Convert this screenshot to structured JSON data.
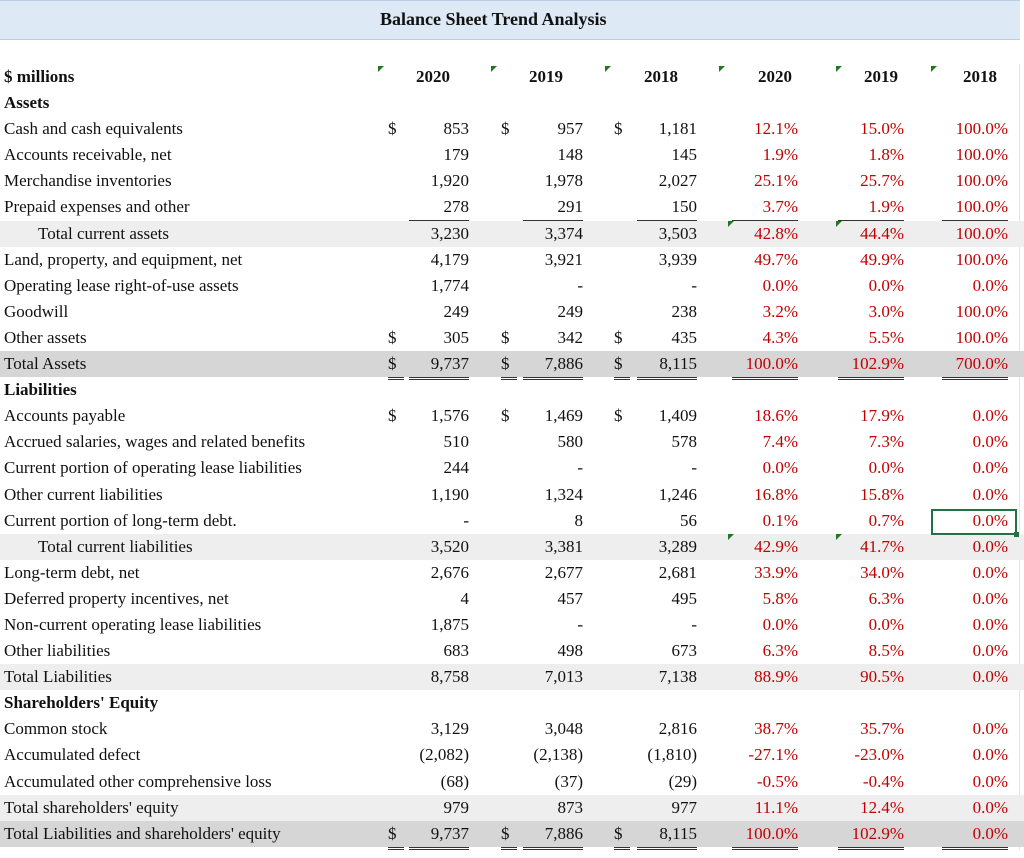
{
  "title": "Balance Sheet Trend Analysis",
  "header": {
    "label": "$ millions",
    "amount_years": [
      "2020",
      "2019",
      "2018"
    ],
    "pct_years": [
      "2020",
      "2019",
      "2018"
    ]
  },
  "rows": [
    {
      "type": "section",
      "label": "Assets"
    },
    {
      "label": "Cash and cash equivalents",
      "dollar": [
        "$",
        "$",
        "$"
      ],
      "values": [
        "853",
        "957",
        "1,181"
      ],
      "pct": [
        "12.1%",
        "15.0%",
        "100.0%"
      ]
    },
    {
      "label": "Accounts receivable, net",
      "values": [
        "179",
        "148",
        "145"
      ],
      "pct": [
        "1.9%",
        "1.8%",
        "100.0%"
      ]
    },
    {
      "label": "Merchandise inventories",
      "values": [
        "1,920",
        "1,978",
        "2,027"
      ],
      "pct": [
        "25.1%",
        "25.7%",
        "100.0%"
      ]
    },
    {
      "label": "Prepaid expenses and other",
      "values": [
        "278",
        "291",
        "150"
      ],
      "pct": [
        "3.7%",
        "1.9%",
        "100.0%"
      ],
      "underline": true
    },
    {
      "label": "Total current assets",
      "indent": true,
      "band": true,
      "values": [
        "3,230",
        "3,374",
        "3,503"
      ],
      "pct": [
        "42.8%",
        "44.4%",
        "100.0%"
      ]
    },
    {
      "label": "Land, property, and equipment, net",
      "values": [
        "4,179",
        "3,921",
        "3,939"
      ],
      "pct": [
        "49.7%",
        "49.9%",
        "100.0%"
      ]
    },
    {
      "label": "Operating lease right-of-use assets",
      "values": [
        "1,774",
        "-",
        "-"
      ],
      "pct": [
        "0.0%",
        "0.0%",
        "0.0%"
      ]
    },
    {
      "label": "Goodwill",
      "values": [
        "249",
        "249",
        "238"
      ],
      "pct": [
        "3.2%",
        "3.0%",
        "100.0%"
      ]
    },
    {
      "label": "Other assets",
      "dollar": [
        "$",
        "$",
        "$"
      ],
      "values": [
        "305",
        "342",
        "435"
      ],
      "pct": [
        "4.3%",
        "5.5%",
        "100.0%"
      ],
      "underline": true
    },
    {
      "label": "Total Assets",
      "band_dark": true,
      "dollar": [
        "$",
        "$",
        "$"
      ],
      "values": [
        "9,737",
        "7,886",
        "8,115"
      ],
      "pct": [
        "100.0%",
        "102.9%",
        "700.0%"
      ],
      "double": true
    },
    {
      "type": "section",
      "label": "Liabilities"
    },
    {
      "label": "Accounts payable",
      "dollar": [
        "$",
        "$",
        "$"
      ],
      "values": [
        "1,576",
        "1,469",
        "1,409"
      ],
      "pct": [
        "18.6%",
        "17.9%",
        "0.0%"
      ]
    },
    {
      "label": "Accrued salaries, wages and related benefits",
      "values": [
        "510",
        "580",
        "578"
      ],
      "pct": [
        "7.4%",
        "7.3%",
        "0.0%"
      ]
    },
    {
      "label": "Current portion of operating lease liabilities",
      "values": [
        "244",
        "-",
        "-"
      ],
      "pct": [
        "0.0%",
        "0.0%",
        "0.0%"
      ]
    },
    {
      "label": "Other current liabilities",
      "values": [
        "1,190",
        "1,324",
        "1,246"
      ],
      "pct": [
        "16.8%",
        "15.8%",
        "0.0%"
      ]
    },
    {
      "label": "Current portion of long-term debt.",
      "values": [
        "-",
        "8",
        "56"
      ],
      "pct": [
        "0.1%",
        "0.7%",
        "0.0%"
      ],
      "underline": true
    },
    {
      "label": "Total current liabilities",
      "indent": true,
      "band": true,
      "values": [
        "3,520",
        "3,381",
        "3,289"
      ],
      "pct": [
        "42.9%",
        "41.7%",
        "0.0%"
      ]
    },
    {
      "label": "Long-term debt, net",
      "values": [
        "2,676",
        "2,677",
        "2,681"
      ],
      "pct": [
        "33.9%",
        "34.0%",
        "0.0%"
      ]
    },
    {
      "label": "Deferred property incentives, net",
      "values": [
        "4",
        "457",
        "495"
      ],
      "pct": [
        "5.8%",
        "6.3%",
        "0.0%"
      ]
    },
    {
      "label": "Non-current operating lease liabilities",
      "values": [
        "1,875",
        "-",
        "-"
      ],
      "pct": [
        "0.0%",
        "0.0%",
        "0.0%"
      ]
    },
    {
      "label": "Other liabilities",
      "values": [
        "683",
        "498",
        "673"
      ],
      "pct": [
        "6.3%",
        "8.5%",
        "0.0%"
      ],
      "underline": true
    },
    {
      "label": "Total Liabilities",
      "band": true,
      "values": [
        "8,758",
        "7,013",
        "7,138"
      ],
      "pct": [
        "88.9%",
        "90.5%",
        "0.0%"
      ]
    },
    {
      "type": "section",
      "label": "Shareholders' Equity"
    },
    {
      "label": "Common stock",
      "values": [
        "3,129",
        "3,048",
        "2,816"
      ],
      "pct": [
        "38.7%",
        "35.7%",
        "0.0%"
      ]
    },
    {
      "label": "Accumulated defect",
      "values": [
        "(2,082)",
        "(2,138)",
        "(1,810)"
      ],
      "pct": [
        "-27.1%",
        "-23.0%",
        "0.0%"
      ]
    },
    {
      "label": "Accumulated other comprehensive loss",
      "values": [
        "(68)",
        "(37)",
        "(29)"
      ],
      "pct": [
        "-0.5%",
        "-0.4%",
        "0.0%"
      ],
      "underline": true
    },
    {
      "label": "Total shareholders' equity",
      "band": true,
      "values": [
        "979",
        "873",
        "977"
      ],
      "pct": [
        "11.1%",
        "12.4%",
        "0.0%"
      ],
      "underline": true
    },
    {
      "label": "Total Liabilities and shareholders' equity",
      "band_dark": true,
      "dollar": [
        "$",
        "$",
        "$"
      ],
      "values": [
        "9,737",
        "7,886",
        "8,115"
      ],
      "pct": [
        "100.0%",
        "102.9%",
        "0.0%"
      ],
      "double": true
    }
  ]
}
